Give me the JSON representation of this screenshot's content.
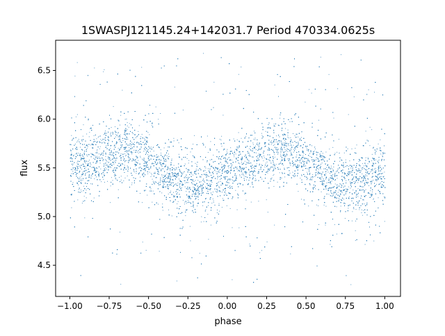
{
  "chart_data": {
    "type": "scatter",
    "title": "1SWASPJ121145.24+142031.7 Period 470334.0625s",
    "xlabel": "phase",
    "ylabel": "flux",
    "xlim": [
      -1.09,
      1.1
    ],
    "ylim": [
      4.18,
      6.81
    ],
    "xticks": [
      -1.0,
      -0.75,
      -0.5,
      -0.25,
      0.0,
      0.25,
      0.5,
      0.75,
      1.0
    ],
    "xtick_labels": [
      "−1.00",
      "−0.75",
      "−0.50",
      "−0.25",
      "0.00",
      "0.25",
      "0.50",
      "0.75",
      "1.00"
    ],
    "yticks": [
      4.5,
      5.0,
      5.5,
      6.0,
      6.5
    ],
    "ytick_labels": [
      "4.5",
      "5.0",
      "5.5",
      "6.0",
      "6.5"
    ],
    "grid": false,
    "marker_color": "#1f77b4",
    "binned_mean_flux": {
      "phase": [
        -1.0,
        -0.9,
        -0.8,
        -0.7,
        -0.65,
        -0.6,
        -0.5,
        -0.4,
        -0.3,
        -0.2,
        -0.1,
        0.0,
        0.1,
        0.2,
        0.3,
        0.35,
        0.4,
        0.5,
        0.6,
        0.7,
        0.8,
        0.9,
        1.0
      ],
      "flux": [
        5.5,
        5.55,
        5.6,
        5.65,
        5.72,
        5.65,
        5.58,
        5.45,
        5.35,
        5.3,
        5.4,
        5.45,
        5.55,
        5.62,
        5.68,
        5.72,
        5.65,
        5.55,
        5.45,
        5.35,
        5.32,
        5.4,
        5.45
      ]
    },
    "flux_scatter_std": 0.15,
    "flux_range_observed": [
      4.3,
      6.7
    ]
  }
}
